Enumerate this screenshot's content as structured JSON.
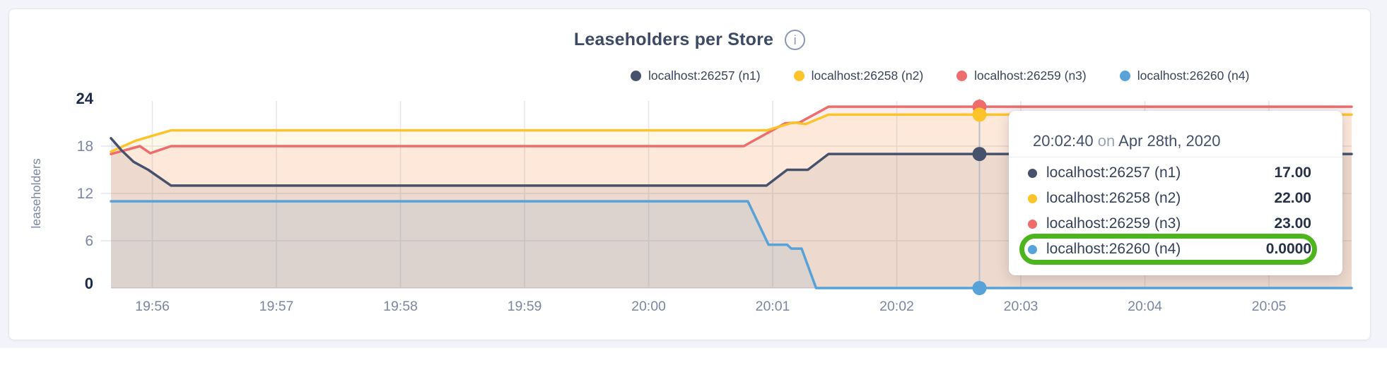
{
  "header": {
    "info_glyph": "i"
  },
  "legend": {
    "position": "top-right",
    "items": [
      {
        "label": "localhost:26257 (n1)"
      },
      {
        "label": "localhost:26258 (n2)"
      },
      {
        "label": "localhost:26259 (n3)"
      },
      {
        "label": "localhost:26260 (n4)"
      }
    ]
  },
  "tooltip": {
    "time": "20:02:40",
    "conjunction": "on",
    "date": "Apr 28th, 2020",
    "rows": [
      {
        "name": "localhost:26257 (n1)",
        "value": "17.00"
      },
      {
        "name": "localhost:26258 (n2)",
        "value": "22.00"
      },
      {
        "name": "localhost:26259 (n3)",
        "value": "23.00"
      },
      {
        "name": "localhost:26260 (n4)",
        "value": "0.0000"
      }
    ],
    "highlight_color": "#4cb41c",
    "highlighted_row": 3
  },
  "chart_data": {
    "type": "area",
    "title": "Leaseholders per Store",
    "ylabel": "leaseholders",
    "ylim": [
      0,
      24
    ],
    "yticks": [
      0,
      6,
      12,
      18,
      24
    ],
    "ytick_emphasis": [
      0,
      24
    ],
    "grid": true,
    "x_window_start": "19:55:40",
    "x_window_end": "20:05:40",
    "x_ticks": [
      {
        "label": "19:56",
        "offset_s": 20
      },
      {
        "label": "19:57",
        "offset_s": 80
      },
      {
        "label": "19:58",
        "offset_s": 140
      },
      {
        "label": "19:59",
        "offset_s": 200
      },
      {
        "label": "20:00",
        "offset_s": 260
      },
      {
        "label": "20:01",
        "offset_s": 320
      },
      {
        "label": "20:02",
        "offset_s": 380
      },
      {
        "label": "20:03",
        "offset_s": 440
      },
      {
        "label": "20:04",
        "offset_s": 500
      },
      {
        "label": "20:05",
        "offset_s": 560
      }
    ],
    "series": [
      {
        "name": "localhost:26257 (n1)",
        "color": "#46526c",
        "points": [
          [
            0,
            19
          ],
          [
            5,
            17.5
          ],
          [
            11,
            16
          ],
          [
            18,
            15
          ],
          [
            29,
            13
          ],
          [
            317,
            13
          ],
          [
            327,
            15
          ],
          [
            337,
            15
          ],
          [
            347,
            17
          ],
          [
            600,
            17
          ]
        ]
      },
      {
        "name": "localhost:26258 (n2)",
        "color": "#fcc32b",
        "points": [
          [
            0,
            17.3
          ],
          [
            12,
            18.7
          ],
          [
            29,
            20
          ],
          [
            317,
            20
          ],
          [
            330,
            21
          ],
          [
            336,
            20.8
          ],
          [
            347,
            22
          ],
          [
            600,
            22
          ]
        ]
      },
      {
        "name": "localhost:26259 (n3)",
        "color": "#ee6c6c",
        "points": [
          [
            0,
            17
          ],
          [
            14,
            18
          ],
          [
            19,
            17.1
          ],
          [
            29,
            18
          ],
          [
            306,
            18
          ],
          [
            326,
            20.9
          ],
          [
            333,
            21
          ],
          [
            347,
            23
          ],
          [
            600,
            23
          ]
        ]
      },
      {
        "name": "localhost:26260 (n4)",
        "color": "#56a2d9",
        "points": [
          [
            0,
            11
          ],
          [
            308,
            11
          ],
          [
            318,
            5.5
          ],
          [
            327,
            5.5
          ],
          [
            329,
            5
          ],
          [
            334,
            5
          ],
          [
            341,
            0
          ],
          [
            600,
            0
          ]
        ]
      }
    ],
    "hover": {
      "time": "20:02:40",
      "offset_s": 420,
      "values": [
        17,
        22,
        23,
        0
      ]
    }
  }
}
